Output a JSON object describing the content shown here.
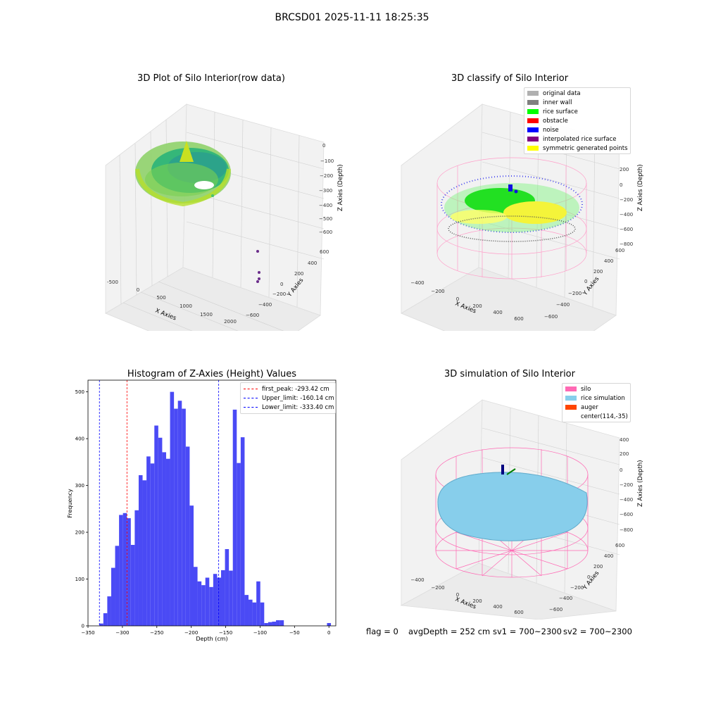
{
  "suptitle": "BRCSD01 2025-11-11 18:25:35",
  "panels": {
    "raw": {
      "title": "3D Plot of Silo Interior(row data)",
      "xlabel": "X Axies",
      "ylabel": "Y Axies",
      "zlabel": "Z Axies (Depth)",
      "xticks": [
        "-500",
        "0",
        "500",
        "1000",
        "1500",
        "2000"
      ],
      "yticks": [
        "600",
        "400",
        "200",
        "0",
        "−200",
        "−400",
        "−600"
      ],
      "zticks": [
        "0",
        "−100",
        "−200",
        "−300",
        "−400",
        "−500",
        "−600"
      ]
    },
    "classify": {
      "title": "3D classify of Silo Interior",
      "xlabel": "X Axies",
      "ylabel": "Y Axies",
      "zlabel": "Z Axies (Depth)",
      "xticks": [
        "−400",
        "−200",
        "0",
        "200",
        "400",
        "600"
      ],
      "yticks": [
        "600",
        "400",
        "200",
        "0",
        "−200",
        "−400",
        "−600"
      ],
      "zticks": [
        "200",
        "0",
        "−200",
        "−400",
        "−600",
        "−800"
      ],
      "legend": [
        {
          "label": "original data",
          "color": "#b0b0b0"
        },
        {
          "label": "inner wall",
          "color": "#808080"
        },
        {
          "label": "rice surface",
          "color": "#00ff00"
        },
        {
          "label": "obstacle",
          "color": "#ff0000"
        },
        {
          "label": "noise",
          "color": "#0000ff"
        },
        {
          "label": "interpolated rice surface",
          "color": "#800080"
        },
        {
          "label": "symmetric generated points",
          "color": "#ffff00"
        }
      ]
    },
    "simulation": {
      "title": "3D simulation of Silo Interior",
      "xlabel": "X Axies",
      "ylabel": "Y Axies",
      "zlabel": "Z Axies (Depth)",
      "xticks": [
        "−400",
        "−200",
        "0",
        "200",
        "400",
        "600"
      ],
      "yticks": [
        "600",
        "400",
        "200",
        "0",
        "−200",
        "−400",
        "−600"
      ],
      "zticks": [
        "400",
        "200",
        "0",
        "−200",
        "−400",
        "−600",
        "−800"
      ],
      "legend": [
        {
          "label": "silo",
          "color": "#ff69b4"
        },
        {
          "label": "rice simulation",
          "color": "#87ceeb"
        },
        {
          "label": "auger",
          "color": "#ff4500"
        },
        {
          "label": "center(114,-35)",
          "color": ""
        }
      ]
    }
  },
  "status": {
    "flag": "flag = 0",
    "avg": "avgDepth = 252 cm",
    "sv1": "sv1 = 700~2300",
    "sv2": "sv2 = 700~2300"
  },
  "chart_data": {
    "type": "bar",
    "title": "Histogram of Z-Axies (Height) Values",
    "xlabel": "Depth (cm)",
    "ylabel": "Frequency",
    "xlim": [
      -350,
      10
    ],
    "ylim": [
      0,
      525
    ],
    "xticks": [
      -350,
      -300,
      -250,
      -200,
      -150,
      -100,
      -50,
      0
    ],
    "yticks": [
      0,
      100,
      200,
      300,
      400,
      500
    ],
    "bar_color": "#4a4af5",
    "bin_width": 5.7,
    "bins": [
      {
        "x": -333.4,
        "v": 5
      },
      {
        "x": -327.7,
        "v": 27
      },
      {
        "x": -322.0,
        "v": 63
      },
      {
        "x": -316.3,
        "v": 124
      },
      {
        "x": -310.6,
        "v": 171
      },
      {
        "x": -304.9,
        "v": 237
      },
      {
        "x": -299.2,
        "v": 241
      },
      {
        "x": -293.5,
        "v": 230
      },
      {
        "x": -287.8,
        "v": 173
      },
      {
        "x": -282.1,
        "v": 247
      },
      {
        "x": -276.4,
        "v": 322
      },
      {
        "x": -270.7,
        "v": 311
      },
      {
        "x": -265.0,
        "v": 362
      },
      {
        "x": -259.3,
        "v": 347
      },
      {
        "x": -253.6,
        "v": 428
      },
      {
        "x": -247.9,
        "v": 402
      },
      {
        "x": -242.2,
        "v": 371
      },
      {
        "x": -236.5,
        "v": 357
      },
      {
        "x": -230.8,
        "v": 500
      },
      {
        "x": -225.1,
        "v": 464
      },
      {
        "x": -219.4,
        "v": 481
      },
      {
        "x": -213.7,
        "v": 464
      },
      {
        "x": -208.0,
        "v": 383
      },
      {
        "x": -202.3,
        "v": 257
      },
      {
        "x": -196.6,
        "v": 126
      },
      {
        "x": -190.9,
        "v": 95
      },
      {
        "x": -185.2,
        "v": 87
      },
      {
        "x": -179.5,
        "v": 103
      },
      {
        "x": -173.8,
        "v": 83
      },
      {
        "x": -168.1,
        "v": 111
      },
      {
        "x": -162.4,
        "v": 103
      },
      {
        "x": -156.7,
        "v": 119
      },
      {
        "x": -151.0,
        "v": 164
      },
      {
        "x": -145.3,
        "v": 118
      },
      {
        "x": -139.6,
        "v": 462
      },
      {
        "x": -133.9,
        "v": 348
      },
      {
        "x": -128.2,
        "v": 403
      },
      {
        "x": -122.5,
        "v": 66
      },
      {
        "x": -116.8,
        "v": 56
      },
      {
        "x": -111.1,
        "v": 50
      },
      {
        "x": -105.4,
        "v": 95
      },
      {
        "x": -99.7,
        "v": 50
      },
      {
        "x": -94.0,
        "v": 6
      },
      {
        "x": -88.3,
        "v": 8
      },
      {
        "x": -82.6,
        "v": 9
      },
      {
        "x": -76.9,
        "v": 12
      },
      {
        "x": -71.2,
        "v": 12
      },
      {
        "x": -65.5,
        "v": 0
      },
      {
        "x": -59.8,
        "v": 0
      },
      {
        "x": -54.1,
        "v": 0
      },
      {
        "x": -48.4,
        "v": 0
      },
      {
        "x": -42.7,
        "v": 0
      },
      {
        "x": -37.0,
        "v": 0
      },
      {
        "x": -31.3,
        "v": 0
      },
      {
        "x": -25.6,
        "v": 0
      },
      {
        "x": -19.9,
        "v": 0
      },
      {
        "x": -14.2,
        "v": 0
      },
      {
        "x": -8.5,
        "v": 0
      },
      {
        "x": -2.8,
        "v": 6
      }
    ],
    "vlines": [
      {
        "label": "first_peak: -293.42 cm",
        "x": -293.42,
        "color": "#ff0000"
      },
      {
        "label": "Upper_limit: -160.14 cm",
        "x": -160.14,
        "color": "#0000ff"
      },
      {
        "label": "Lower_limit: -333.40 cm",
        "x": -333.4,
        "color": "#0000ff"
      }
    ]
  }
}
